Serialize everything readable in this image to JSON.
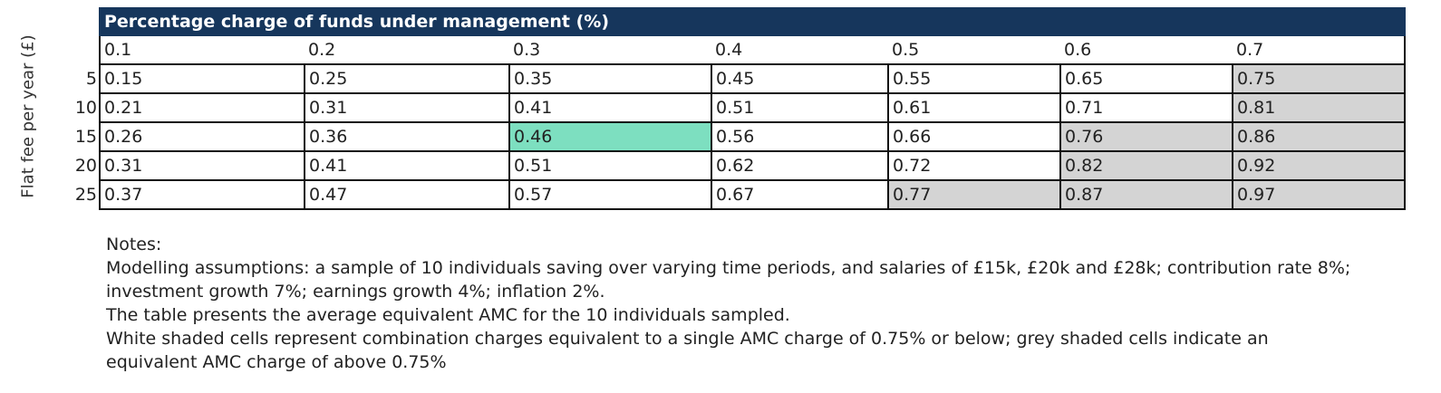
{
  "table": {
    "title": "Percentage charge of funds under management (%)",
    "y_axis_label": "Flat fee per year (£)",
    "columns": [
      "0.1",
      "0.2",
      "0.3",
      "0.4",
      "0.5",
      "0.6",
      "0.7"
    ],
    "rows": [
      {
        "fee": "5",
        "values": [
          "0.15",
          "0.25",
          "0.35",
          "0.45",
          "0.55",
          "0.65",
          "0.75"
        ]
      },
      {
        "fee": "10",
        "values": [
          "0.21",
          "0.31",
          "0.41",
          "0.51",
          "0.61",
          "0.71",
          "0.81"
        ]
      },
      {
        "fee": "15",
        "values": [
          "0.26",
          "0.36",
          "0.46",
          "0.56",
          "0.66",
          "0.76",
          "0.86"
        ]
      },
      {
        "fee": "20",
        "values": [
          "0.31",
          "0.41",
          "0.51",
          "0.62",
          "0.72",
          "0.82",
          "0.92"
        ]
      },
      {
        "fee": "25",
        "values": [
          "0.37",
          "0.47",
          "0.57",
          "0.67",
          "0.77",
          "0.87",
          "0.97"
        ]
      }
    ],
    "colors": {
      "header_bg": "#16365c",
      "grey_cell": "#d4d4d4",
      "highlight_cell": "#7ddfc0"
    }
  },
  "notes": {
    "heading": "Notes:",
    "line1": "Modelling assumptions: a sample of 10 individuals saving over varying time periods, and salaries of £15k, £20k and £28k; contribution rate 8%;",
    "line2": "investment growth 7%; earnings growth 4%; inflation 2%.",
    "line3": "The table presents the average equivalent AMC for the 10 individuals sampled.",
    "line4": "White shaded cells represent combination charges equivalent to a single AMC charge of 0.75% or below; grey shaded cells indicate an",
    "line5": "equivalent AMC charge of above 0.75%"
  }
}
